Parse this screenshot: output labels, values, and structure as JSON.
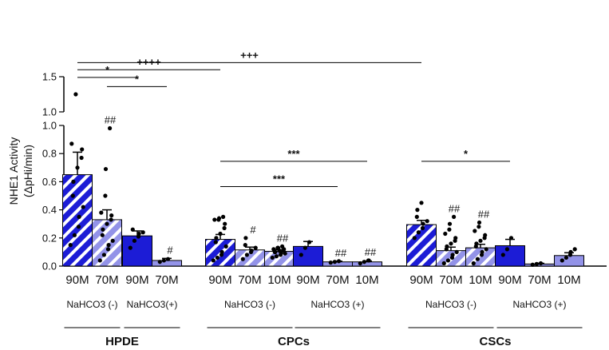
{
  "chart_data": {
    "type": "bar",
    "ylabel_line1": "NHE1 Activity",
    "ylabel_line2": "(ΔpHi/min)",
    "ylim_lower": [
      0,
      1.0
    ],
    "ylim_upper": [
      1.0,
      1.5
    ],
    "yticks_lower": [
      "0.0",
      "0.2",
      "0.4",
      "0.6",
      "0.8",
      "1.0"
    ],
    "yticks_upper": [
      "1.0",
      "1.5"
    ],
    "colors": {
      "dark": "#1c1cd6",
      "light": "#9393e8",
      "outline": "#000000"
    },
    "bars": [
      {
        "label": "90M",
        "mean": 0.65,
        "err": 0.16,
        "color": "dark",
        "pattern": "hatch",
        "mark": "",
        "points": [
          0.15,
          0.22,
          0.28,
          0.35,
          0.42,
          0.5,
          0.6,
          0.7,
          0.77,
          0.83,
          0.87,
          1.25
        ]
      },
      {
        "label": "70M",
        "mean": 0.33,
        "err": 0.07,
        "color": "light",
        "pattern": "hatch",
        "mark": "##",
        "points": [
          0.04,
          0.08,
          0.12,
          0.15,
          0.18,
          0.22,
          0.26,
          0.3,
          0.33,
          0.36,
          0.38,
          0.5,
          0.69,
          0.98
        ]
      },
      {
        "label": "90M",
        "mean": 0.215,
        "err": 0.035,
        "color": "dark",
        "pattern": "solid",
        "mark": "",
        "points": [
          0.13,
          0.18,
          0.21,
          0.23,
          0.24,
          0.26
        ]
      },
      {
        "label": "70M",
        "mean": 0.04,
        "err": 0.015,
        "color": "light",
        "pattern": "solid",
        "mark": "#",
        "points": [
          0.03,
          0.04,
          0.05
        ]
      },
      {
        "label": "90M",
        "mean": 0.19,
        "err": 0.035,
        "color": "dark",
        "pattern": "hatch",
        "mark": "",
        "points": [
          0.04,
          0.06,
          0.08,
          0.1,
          0.14,
          0.17,
          0.2,
          0.23,
          0.27,
          0.3,
          0.33,
          0.33,
          0.34,
          0.35
        ]
      },
      {
        "label": "70M",
        "mean": 0.115,
        "err": 0.02,
        "color": "light",
        "pattern": "hatch",
        "mark": "#",
        "points": [
          0.05,
          0.08,
          0.1,
          0.11,
          0.13,
          0.15,
          0.2
        ]
      },
      {
        "label": "10M",
        "mean": 0.105,
        "err": 0.012,
        "color": "light",
        "pattern": "hatch",
        "mark": "##",
        "points": [
          0.06,
          0.07,
          0.08,
          0.09,
          0.09,
          0.1,
          0.1,
          0.11,
          0.11,
          0.12,
          0.12,
          0.13,
          0.13,
          0.14
        ]
      },
      {
        "label": "90M",
        "mean": 0.14,
        "err": 0.035,
        "color": "dark",
        "pattern": "solid",
        "mark": "",
        "points": [
          0.08,
          0.13,
          0.17
        ]
      },
      {
        "label": "70M",
        "mean": 0.03,
        "err": 0.005,
        "color": "light",
        "pattern": "solid",
        "mark": "##",
        "points": [
          0.025,
          0.03,
          0.035
        ]
      },
      {
        "label": "10M",
        "mean": 0.03,
        "err": 0.006,
        "color": "light",
        "pattern": "solid",
        "mark": "##",
        "points": [
          0.02,
          0.03,
          0.04,
          0.04
        ]
      },
      {
        "label": "90M",
        "mean": 0.295,
        "err": 0.03,
        "color": "dark",
        "pattern": "hatch",
        "mark": "",
        "points": [
          0.2,
          0.24,
          0.27,
          0.3,
          0.32,
          0.35,
          0.4,
          0.45
        ]
      },
      {
        "label": "70M",
        "mean": 0.11,
        "err": 0.025,
        "color": "light",
        "pattern": "hatch",
        "mark": "##",
        "points": [
          0.02,
          0.04,
          0.06,
          0.08,
          0.1,
          0.12,
          0.14,
          0.16,
          0.18,
          0.2,
          0.23,
          0.26,
          0.3,
          0.35
        ]
      },
      {
        "label": "10M",
        "mean": 0.13,
        "err": 0.025,
        "color": "light",
        "pattern": "hatch",
        "mark": "##",
        "points": [
          0.02,
          0.05,
          0.08,
          0.1,
          0.12,
          0.14,
          0.16,
          0.18,
          0.2,
          0.22,
          0.25,
          0.28,
          0.31
        ]
      },
      {
        "label": "90M",
        "mean": 0.145,
        "err": 0.045,
        "color": "dark",
        "pattern": "solid",
        "mark": "",
        "points": [
          0.08,
          0.12,
          0.2
        ]
      },
      {
        "label": "70M",
        "mean": 0.015,
        "err": 0.005,
        "color": "light",
        "pattern": "solid",
        "mark": "",
        "points": [
          0.01,
          0.015,
          0.02
        ]
      },
      {
        "label": "10M",
        "mean": 0.075,
        "err": 0.02,
        "color": "light",
        "pattern": "solid",
        "mark": "",
        "points": [
          0.04,
          0.06,
          0.08,
          0.1,
          0.12
        ]
      }
    ],
    "conditions": [
      {
        "label": "NaHCO3 (-)",
        "bars": [
          0,
          1
        ]
      },
      {
        "label": "NaHCO3(+)",
        "bars": [
          2,
          3
        ]
      },
      {
        "label": "NaHCO3 (-)",
        "bars": [
          4,
          6
        ]
      },
      {
        "label": "NaHCO3 (+)",
        "bars": [
          7,
          9
        ]
      },
      {
        "label": "NaHCO3 (-)",
        "bars": [
          10,
          12
        ]
      },
      {
        "label": "NaHCO3 (+)",
        "bars": [
          13,
          15
        ]
      }
    ],
    "groups": [
      {
        "label": "HPDE",
        "bars": [
          0,
          3
        ]
      },
      {
        "label": "CPCs",
        "bars": [
          4,
          9
        ]
      },
      {
        "label": "CSCs",
        "bars": [
          10,
          15
        ]
      }
    ],
    "significance": [
      {
        "text": "+++",
        "from": 0,
        "to": 10,
        "level": 1.7
      },
      {
        "text": "++++",
        "from": 0,
        "to": 4,
        "level": 1.6
      },
      {
        "text": "*",
        "from": 0,
        "to": 2,
        "level": 1.49
      },
      {
        "text": "*",
        "from": 1,
        "to": 3,
        "level": 1.36
      },
      {
        "text": "***",
        "from": 4,
        "to": 9,
        "level": 0.745
      },
      {
        "text": "***",
        "from": 4,
        "to": 8,
        "level": 0.565
      },
      {
        "text": "*",
        "from": 10,
        "to": 13,
        "level": 0.745
      }
    ]
  }
}
